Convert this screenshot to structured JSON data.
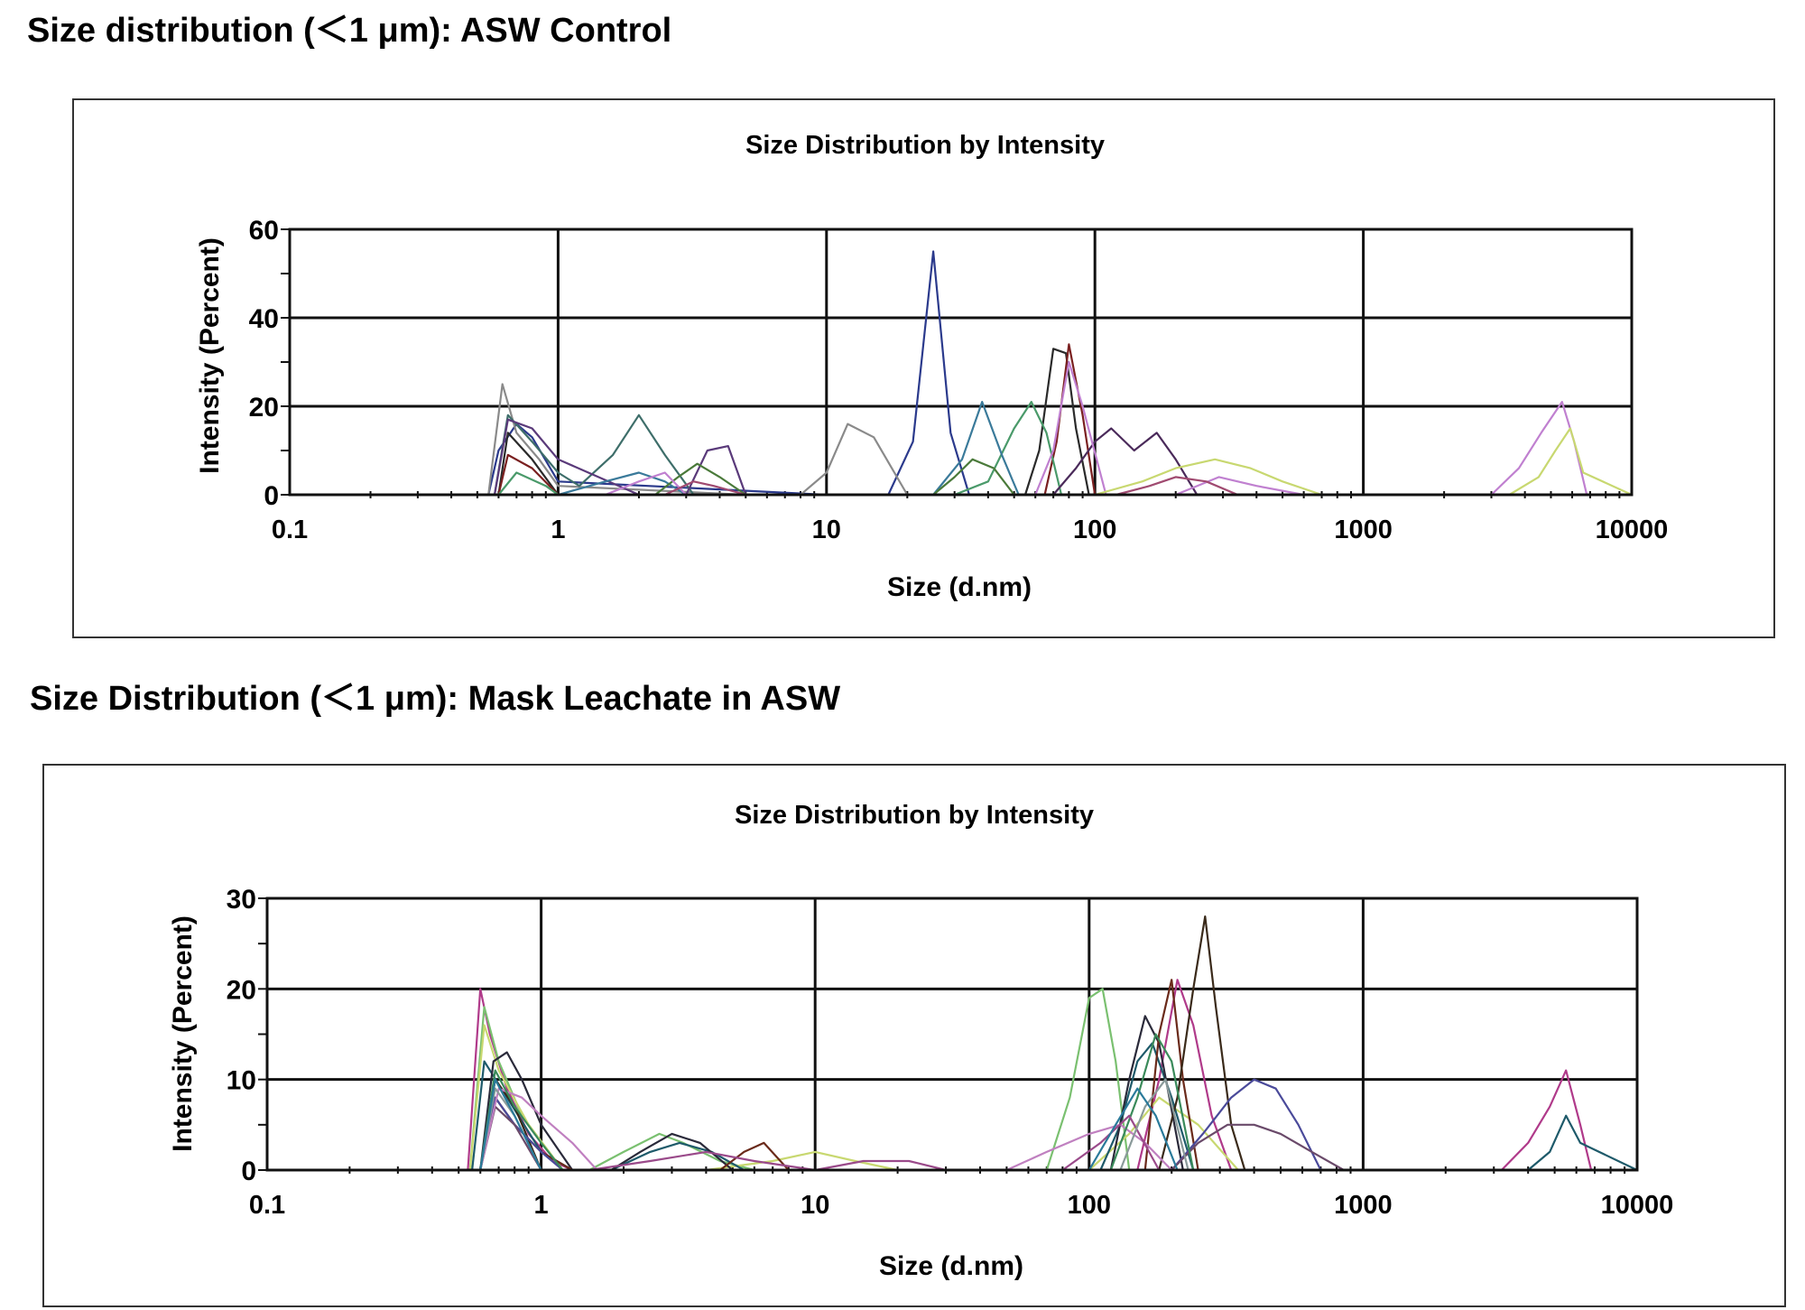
{
  "figure": {
    "top_heading": "Size distribution (＜1 μm): ASW Control",
    "bottom_heading": "Size Distribution (＜1 μm): Mask Leachate in ASW"
  },
  "chart_data": [
    {
      "type": "line",
      "title": "Size Distribution by Intensity",
      "xlabel": "Size (d.nm)",
      "ylabel": "Intensity (Percent)",
      "x_scale": "log",
      "xlim": [
        0.1,
        10000
      ],
      "ylim": [
        0,
        60
      ],
      "x_ticks": [
        "0.1",
        "1",
        "10",
        "100",
        "1000",
        "10000"
      ],
      "y_ticks": [
        "0",
        "20",
        "40",
        "60"
      ],
      "grid": true,
      "legend": "none",
      "series": [
        {
          "color": "#2b3a8c",
          "x": [
            0.4,
            0.55,
            0.6,
            0.7,
            0.8,
            1,
            10,
            17,
            21,
            25,
            29,
            34,
            10000
          ],
          "y": [
            0,
            0,
            10,
            16,
            13,
            3,
            0,
            0,
            12,
            55,
            14,
            0,
            0
          ]
        },
        {
          "color": "#8a8a8a",
          "x": [
            0.45,
            0.55,
            0.62,
            0.7,
            0.85,
            1,
            5,
            8,
            10,
            12,
            15,
            20,
            10000
          ],
          "y": [
            0,
            0,
            25,
            14,
            8,
            2,
            0,
            0,
            5,
            16,
            13,
            0,
            0
          ]
        },
        {
          "color": "#3e6e6a",
          "x": [
            0.45,
            0.58,
            0.65,
            0.8,
            1,
            1.2,
            1.6,
            2,
            2.5,
            3.2,
            10000
          ],
          "y": [
            0,
            0,
            18,
            12,
            5,
            2,
            9,
            18,
            9,
            0,
            0
          ]
        },
        {
          "color": "#5a3a7a",
          "x": [
            0.5,
            0.58,
            0.65,
            0.8,
            1,
            2,
            3,
            3.6,
            4.3,
            5,
            10000
          ],
          "y": [
            0,
            0,
            17,
            15,
            8,
            0,
            0,
            10,
            11,
            0,
            0
          ]
        },
        {
          "color": "#2a2a2a",
          "x": [
            0.5,
            0.6,
            0.65,
            0.8,
            1,
            45,
            55,
            62,
            70,
            78,
            85,
            95,
            10000
          ],
          "y": [
            0,
            0,
            14,
            8,
            0,
            0,
            0,
            10,
            33,
            32,
            15,
            0,
            0
          ]
        },
        {
          "color": "#7a2020",
          "x": [
            0.5,
            0.6,
            0.65,
            0.8,
            1,
            55,
            65,
            72,
            80,
            90,
            100,
            10000
          ],
          "y": [
            0,
            0,
            9,
            6,
            0,
            0,
            0,
            12,
            34,
            18,
            0,
            0
          ]
        },
        {
          "color": "#4a9a6a",
          "x": [
            0.5,
            0.6,
            0.7,
            0.9,
            1,
            30,
            40,
            50,
            58,
            66,
            75,
            10000
          ],
          "y": [
            0,
            0,
            5,
            2,
            0,
            0,
            3,
            15,
            21,
            14,
            0,
            0
          ]
        },
        {
          "color": "#3a7a9a",
          "x": [
            1,
            1.5,
            2,
            2.5,
            3,
            25,
            32,
            38,
            45,
            52,
            10000
          ],
          "y": [
            0,
            3,
            5,
            3,
            0,
            0,
            8,
            21,
            9,
            0,
            0
          ]
        },
        {
          "color": "#4a7a3a",
          "x": [
            1.5,
            2.3,
            2.8,
            3.3,
            4,
            5,
            25,
            30,
            35,
            42,
            50,
            10000
          ],
          "y": [
            0,
            0,
            4,
            7,
            4,
            0,
            0,
            4,
            8,
            6,
            0,
            0
          ]
        },
        {
          "color": "#4a2a5a",
          "x": [
            70,
            85,
            100,
            115,
            140,
            170,
            200,
            240,
            10000
          ],
          "y": [
            0,
            6,
            12,
            15,
            10,
            14,
            8,
            0,
            0
          ]
        },
        {
          "color": "#c080d0",
          "x": [
            1.5,
            2,
            2.5,
            3,
            60,
            70,
            80,
            90,
            110,
            200,
            290,
            400,
            600,
            3000,
            3800,
            4600,
            5500,
            6100,
            6800,
            10000
          ],
          "y": [
            0,
            3,
            5,
            0,
            0,
            10,
            30,
            20,
            0,
            0,
            4,
            2,
            0,
            0,
            6,
            14,
            21,
            12,
            0,
            0
          ]
        },
        {
          "color": "#c8d870",
          "x": [
            100,
            150,
            200,
            280,
            380,
            500,
            700,
            3500,
            4500,
            5200,
            5900,
            6600,
            10000
          ],
          "y": [
            0,
            3,
            6,
            8,
            6,
            3,
            0,
            0,
            4,
            10,
            15,
            5,
            0
          ]
        },
        {
          "color": "#a04a70",
          "x": [
            1.5,
            2.5,
            3.2,
            3.8,
            5,
            120,
            160,
            200,
            260,
            340,
            10000
          ],
          "y": [
            0,
            0,
            3,
            2,
            0,
            0,
            2,
            4,
            3,
            0,
            0
          ]
        }
      ]
    },
    {
      "type": "line",
      "title": "Size Distribution by Intensity",
      "xlabel": "Size (d.nm)",
      "ylabel": "Intensity (Percent)",
      "x_scale": "log",
      "xlim": [
        0.1,
        10000
      ],
      "ylim": [
        0,
        30
      ],
      "x_ticks": [
        "0.1",
        "1",
        "10",
        "100",
        "1000",
        "10000"
      ],
      "y_ticks": [
        "0",
        "10",
        "20",
        "30"
      ],
      "grid": true,
      "legend": "none",
      "series": [
        {
          "color": "#b03a8a",
          "x": [
            0.42,
            0.54,
            0.6,
            0.65,
            0.75,
            0.9,
            1.1,
            1.3,
            150,
            180,
            210,
            240,
            280,
            330,
            3200,
            4000,
            4800,
            5500,
            6200,
            6800,
            10000
          ],
          "y": [
            0,
            0,
            20,
            15,
            9,
            4,
            1,
            0,
            0,
            10,
            21,
            16,
            6,
            0,
            0,
            3,
            7,
            11,
            5,
            0,
            0
          ]
        },
        {
          "color": "#7ac070",
          "x": [
            0.45,
            0.55,
            0.62,
            0.7,
            0.85,
            1.2,
            1.5,
            2,
            2.7,
            3.3,
            4.5,
            6,
            70,
            85,
            100,
            112,
            125,
            140,
            10000
          ],
          "y": [
            0,
            0,
            18,
            12,
            6,
            0,
            0,
            2,
            4,
            3,
            1,
            0,
            0,
            8,
            19,
            20,
            12,
            0,
            0
          ]
        },
        {
          "color": "#c8d870",
          "x": [
            0.45,
            0.55,
            0.62,
            0.7,
            0.9,
            1.2,
            4,
            7,
            10,
            14,
            20,
            100,
            140,
            180,
            250,
            350,
            10000
          ],
          "y": [
            0,
            0,
            16,
            11,
            5,
            0,
            0,
            1,
            2,
            1,
            0,
            0,
            4,
            8,
            5,
            0,
            0
          ]
        },
        {
          "color": "#1e5a6a",
          "x": [
            0.45,
            0.56,
            0.62,
            0.75,
            1,
            1.3,
            1.8,
            2.5,
            3.2,
            4.2,
            5.5,
            110,
            130,
            150,
            170,
            200,
            240,
            4000,
            4800,
            5500,
            6200,
            10000
          ],
          "y": [
            0,
            0,
            12,
            8,
            2,
            0,
            0,
            2,
            3,
            2,
            0,
            0,
            5,
            12,
            14,
            8,
            0,
            0,
            2,
            6,
            3,
            0
          ]
        },
        {
          "color": "#2a2a3a",
          "x": [
            0.48,
            0.6,
            0.67,
            0.75,
            0.85,
            1,
            1.3,
            1.8,
            2.3,
            3,
            3.8,
            5,
            120,
            140,
            160,
            180,
            220,
            10000
          ],
          "y": [
            0,
            0,
            12,
            13,
            10,
            5,
            0,
            0,
            2,
            4,
            3,
            0,
            0,
            10,
            17,
            14,
            0,
            0
          ]
        },
        {
          "color": "#6a2a1a",
          "x": [
            0.5,
            0.6,
            0.68,
            0.8,
            1,
            1.3,
            4.5,
            5.5,
            6.5,
            8,
            160,
            180,
            200,
            220,
            250,
            10000
          ],
          "y": [
            0,
            0,
            8,
            5,
            2,
            0,
            0,
            2,
            3,
            0,
            0,
            15,
            21,
            10,
            0,
            0
          ]
        },
        {
          "color": "#3a2a1a",
          "x": [
            0.5,
            0.6,
            0.68,
            0.8,
            1,
            180,
            210,
            240,
            265,
            290,
            330,
            370,
            10000
          ],
          "y": [
            0,
            0,
            10,
            7,
            0,
            0,
            8,
            20,
            28,
            18,
            5,
            0,
            0
          ]
        },
        {
          "color": "#4a4a9a",
          "x": [
            0.5,
            0.6,
            0.68,
            0.8,
            1,
            1.2,
            200,
            260,
            330,
            400,
            480,
            580,
            700,
            10000
          ],
          "y": [
            0,
            0,
            8,
            5,
            2,
            0,
            0,
            4,
            8,
            10,
            9,
            5,
            0,
            0
          ]
        },
        {
          "color": "#6a4a6a",
          "x": [
            0.5,
            0.6,
            0.68,
            0.8,
            1,
            200,
            250,
            320,
            400,
            500,
            650,
            850,
            10000
          ],
          "y": [
            0,
            0,
            7,
            5,
            0,
            0,
            3,
            5,
            5,
            4,
            2,
            0,
            0
          ]
        },
        {
          "color": "#c080c0",
          "x": [
            0.5,
            0.6,
            0.7,
            0.85,
            1,
            1.3,
            1.6,
            2,
            50,
            70,
            100,
            130,
            160,
            200,
            10000
          ],
          "y": [
            0,
            0,
            9,
            8,
            6,
            3,
            0,
            0,
            0,
            2,
            4,
            5,
            3,
            0,
            0
          ]
        },
        {
          "color": "#3a8a5a",
          "x": [
            0.5,
            0.6,
            0.68,
            0.8,
            1,
            1.2,
            120,
            150,
            175,
            200,
            240,
            10000
          ],
          "y": [
            0,
            0,
            11,
            7,
            3,
            0,
            0,
            8,
            15,
            12,
            0,
            0
          ]
        },
        {
          "color": "#9a4a8a",
          "x": [
            1,
            1.5,
            2.5,
            4,
            6,
            10,
            15,
            22,
            30,
            80,
            110,
            140,
            180,
            10000
          ],
          "y": [
            0,
            0,
            1,
            2,
            1,
            0,
            1,
            1,
            0,
            0,
            3,
            6,
            0,
            0
          ]
        },
        {
          "color": "#8a9a9a",
          "x": [
            0.5,
            0.6,
            0.68,
            0.8,
            1,
            130,
            160,
            190,
            230,
            10000
          ],
          "y": [
            0,
            0,
            9,
            6,
            0,
            0,
            7,
            10,
            0,
            0
          ]
        },
        {
          "color": "#2a7a9a",
          "x": [
            0.5,
            0.6,
            0.68,
            0.8,
            1,
            100,
            125,
            150,
            175,
            210,
            10000
          ],
          "y": [
            0,
            0,
            10,
            6,
            0,
            0,
            5,
            9,
            6,
            0,
            0
          ]
        }
      ]
    }
  ]
}
